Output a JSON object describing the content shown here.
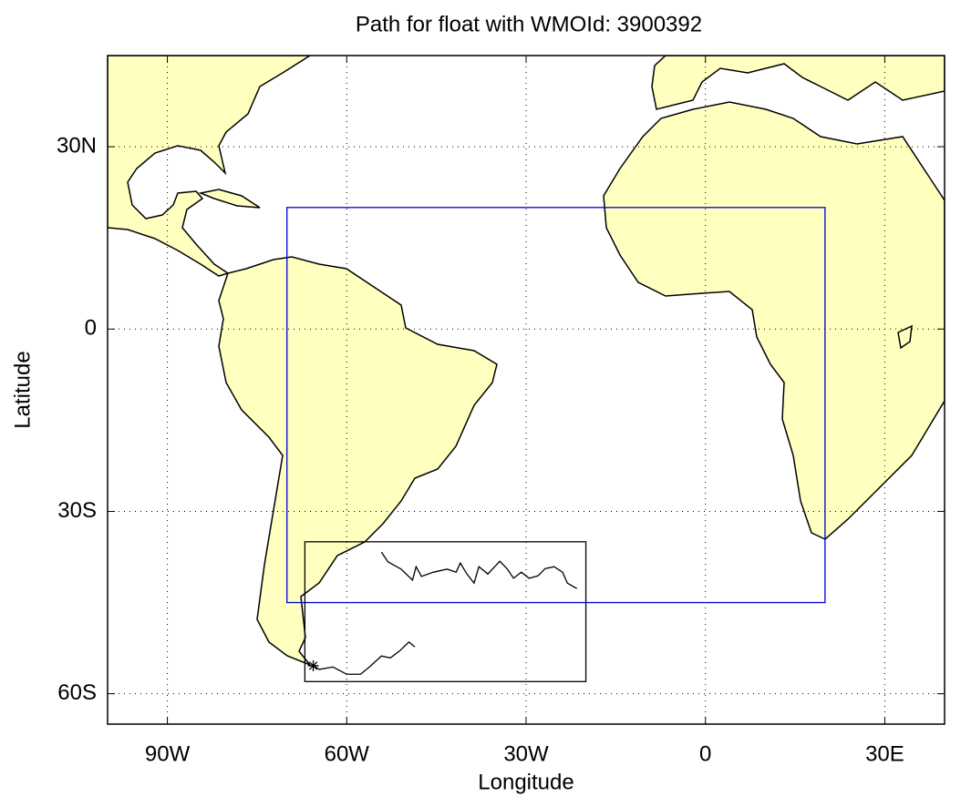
{
  "chart_data": {
    "type": "line",
    "title": "Path for float with WMOId: 3900392",
    "xlabel": "Longitude",
    "ylabel": "Latitude",
    "xlim": [
      -100,
      40
    ],
    "ylim": [
      -65,
      45
    ],
    "xticks": [
      {
        "value": -90,
        "label": "90W"
      },
      {
        "value": -60,
        "label": "60W"
      },
      {
        "value": -30,
        "label": "30W"
      },
      0,
      {
        "value": 30,
        "label": "30E"
      }
    ],
    "yticks": [
      {
        "value": -60,
        "label": "60S"
      },
      {
        "value": -30,
        "label": "30S"
      },
      0,
      {
        "value": 30,
        "label": "30N"
      }
    ],
    "grid": true,
    "land_color": "#ffffc0",
    "color": "#000000",
    "x": [
      -54.2,
      -53.1,
      -50.9,
      -49.0,
      -48.4,
      -47.5,
      -45.5,
      -43.2,
      -41.7,
      -41.0,
      -39.9,
      -38.7,
      -37.9,
      -36.4,
      -34.4,
      -33.2,
      -32.1,
      -30.8,
      -29.5,
      -28.0,
      -26.8,
      -25.3,
      -23.9,
      -23.1,
      -21.5,
      null,
      -48.6,
      -49.6,
      -51.2,
      -52.7,
      -54.2,
      -56.2,
      -57.7,
      -60.0,
      -62.3,
      -64.6,
      -65.6
    ],
    "values": [
      -36.7,
      -38.3,
      -39.5,
      -41.3,
      -39.1,
      -40.7,
      -40.0,
      -39.5,
      -40.0,
      -38.5,
      -40.3,
      -41.8,
      -39.1,
      -40.3,
      -38.2,
      -39.4,
      -41.0,
      -40.0,
      -41.0,
      -40.6,
      -39.4,
      -39.1,
      -40.0,
      -41.8,
      -42.7,
      null,
      -52.3,
      -51.5,
      -53.0,
      -54.1,
      -53.8,
      -55.6,
      -56.8,
      -56.8,
      -55.6,
      -56.0,
      -55.4
    ],
    "boxes": [
      {
        "lon": [
          -70,
          20
        ],
        "lat": [
          -45,
          20
        ],
        "color": "#0000cc"
      },
      {
        "lon": [
          -67,
          -20
        ],
        "lat": [
          -58,
          -35
        ],
        "color": "#000000"
      }
    ]
  }
}
